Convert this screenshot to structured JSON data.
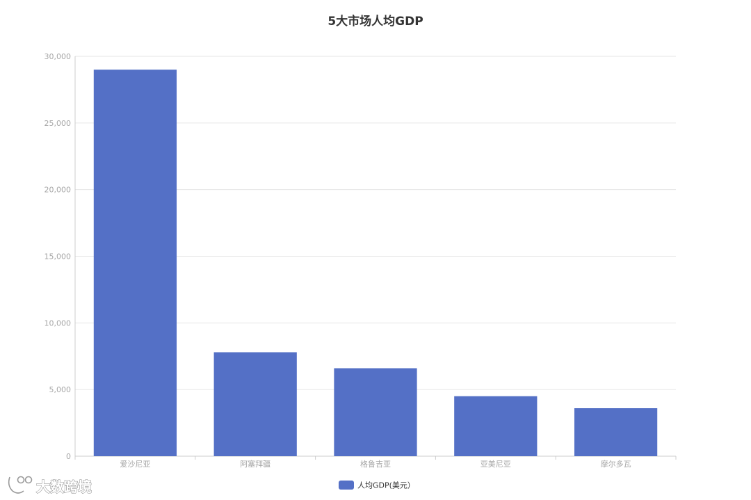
{
  "chart_data": {
    "type": "bar",
    "title": "5大市场人均GDP",
    "categories": [
      "爱沙尼亚",
      "阿塞拜疆",
      "格鲁吉亚",
      "亚美尼亚",
      "摩尔多瓦"
    ],
    "series": [
      {
        "name": "人均GDP(美元）",
        "values": [
          29000,
          7800,
          6600,
          4500,
          3600
        ]
      }
    ],
    "ylim": [
      0,
      30000
    ],
    "yticks": [
      "0",
      "5,000",
      "10,000",
      "15,000",
      "20,000",
      "25,000",
      "30,000"
    ],
    "xlabel": "",
    "ylabel": "",
    "grid": true,
    "legend_position": "bottom-center",
    "colors": {
      "bar": "#5470c6",
      "grid": "#e6e6e6",
      "axis": "#cccccc",
      "tick_text": "#a6a6a6",
      "title": "#333333"
    }
  },
  "watermark": {
    "text": "大数跨境"
  }
}
